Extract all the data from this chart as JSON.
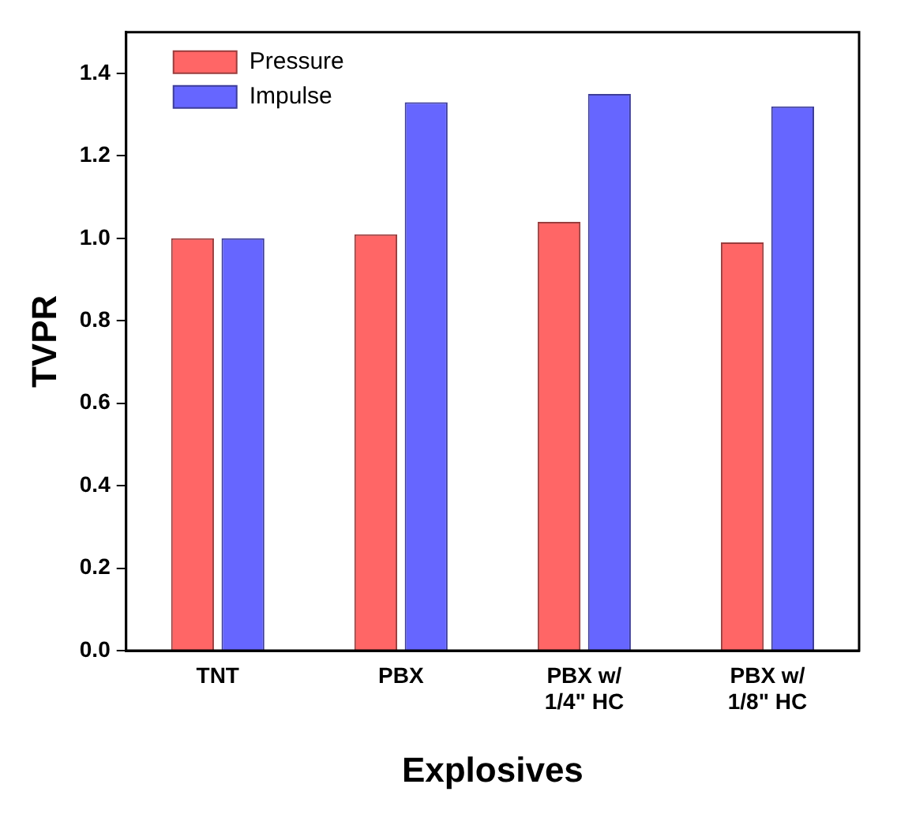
{
  "chart_data": {
    "type": "bar",
    "xlabel": "Explosives",
    "ylabel": "TVPR",
    "categories": [
      "TNT",
      "PBX",
      "PBX w/ 1/4\" HC",
      "PBX w/ 1/8\" HC"
    ],
    "series": [
      {
        "name": "Pressure",
        "color": "#ff6666",
        "values": [
          1.0,
          1.01,
          1.04,
          0.99
        ]
      },
      {
        "name": "Impulse",
        "color": "#6666ff",
        "values": [
          1.0,
          1.33,
          1.35,
          1.32
        ]
      }
    ],
    "ylim": [
      0,
      1.5
    ],
    "yticks": [
      {
        "value": 0,
        "label": "0.0"
      },
      {
        "value": 0.2,
        "label": "0.2"
      },
      {
        "value": 0.4,
        "label": "0.4"
      },
      {
        "value": 0.6,
        "label": "0.6"
      },
      {
        "value": 0.8,
        "label": "0.8"
      },
      {
        "value": 1.0,
        "label": "1.0"
      },
      {
        "value": 1.2,
        "label": "1.2"
      },
      {
        "value": 1.4,
        "label": "1.4"
      }
    ],
    "grid": false,
    "legend": "top left"
  }
}
